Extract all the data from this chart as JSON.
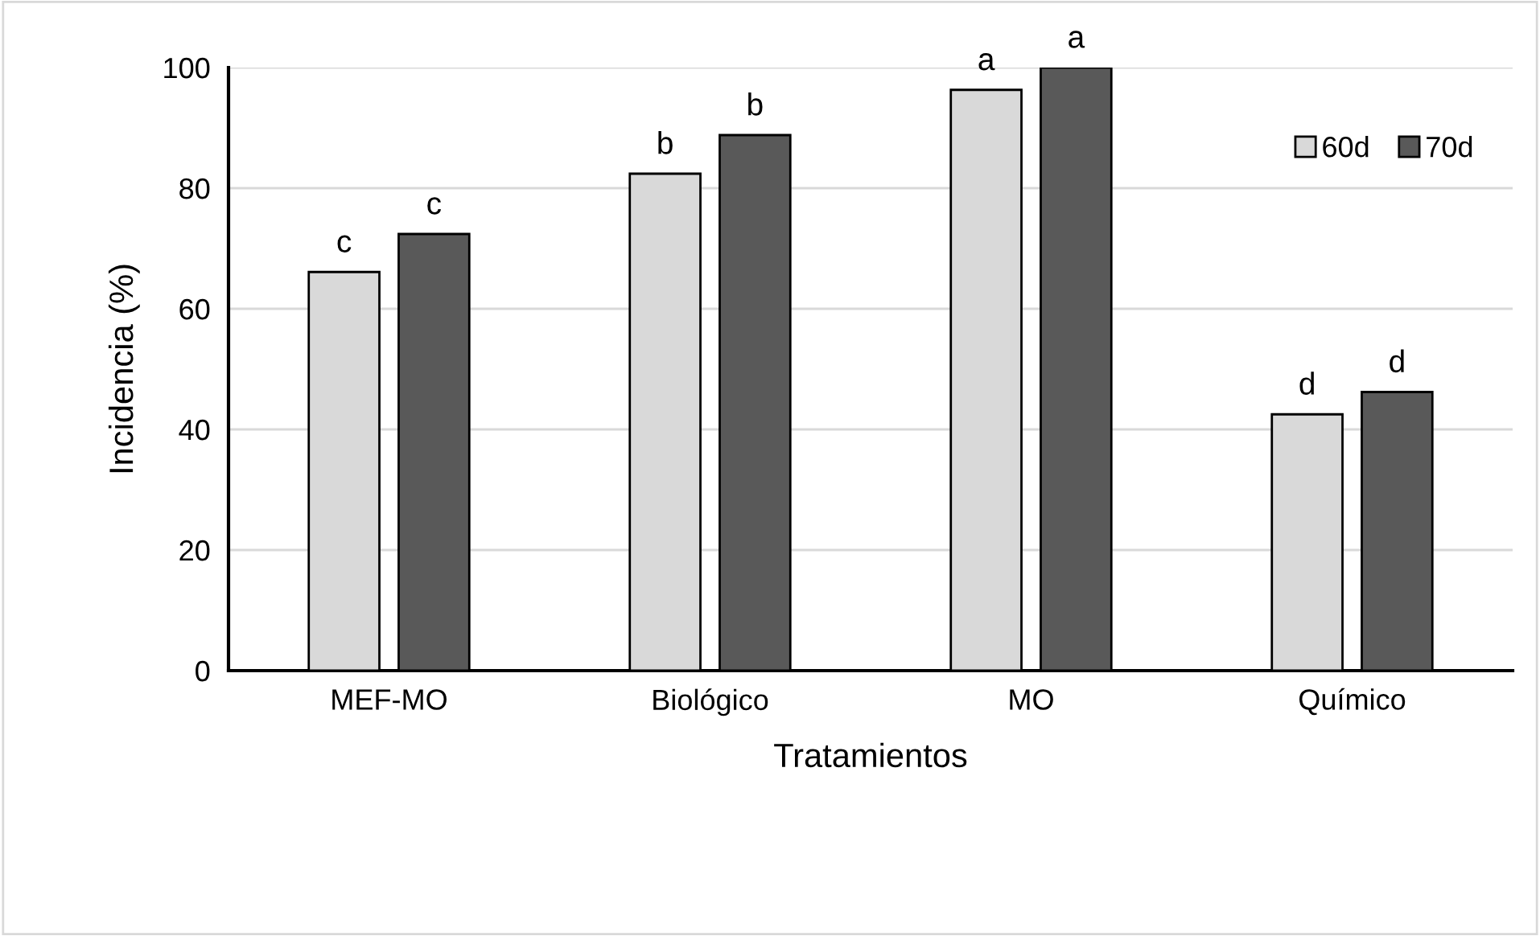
{
  "chart_data": {
    "type": "bar",
    "xlabel": "Tratamientos",
    "ylabel": "Incidencia (%)",
    "categories": [
      "MEF-MO",
      "Biológico",
      "MO",
      "Químico"
    ],
    "series": [
      {
        "name": "60d",
        "color": "#d9d9d9",
        "values": [
          66.1,
          82.4,
          96.3,
          42.5
        ],
        "value_labels": [
          "c",
          "b",
          "a",
          "d"
        ]
      },
      {
        "name": "70d",
        "color": "#595959",
        "values": [
          72.4,
          88.8,
          100,
          46.2
        ],
        "value_labels": [
          "c",
          "b",
          "a",
          "d"
        ]
      }
    ],
    "ylim": [
      0,
      100
    ],
    "yticks": [
      0,
      20,
      40,
      60,
      80,
      100
    ],
    "grid": "y",
    "legend": "top right"
  }
}
